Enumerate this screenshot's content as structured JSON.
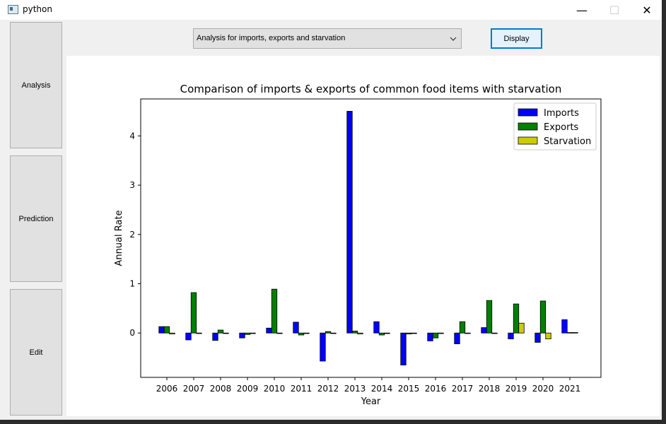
{
  "window": {
    "title": "python"
  },
  "window_controls": {
    "minimize": "—",
    "maximize": "☐",
    "close": "✕"
  },
  "sidebar": {
    "items": [
      {
        "label": "Analysis"
      },
      {
        "label": "Prediction"
      },
      {
        "label": "Edit"
      }
    ]
  },
  "toolbar": {
    "dropdown_value": "Analysis for imports, exports and starvation",
    "display_label": "Display"
  },
  "chart_data": {
    "type": "bar",
    "title": "Comparison of imports & exports of common food items with starvation",
    "xlabel": "Year",
    "ylabel": "Annual Rate",
    "categories": [
      "2006",
      "2007",
      "2008",
      "2009",
      "2010",
      "2011",
      "2012",
      "2013",
      "2014",
      "2015",
      "2016",
      "2017",
      "2018",
      "2019",
      "2020",
      "2021"
    ],
    "series": [
      {
        "name": "Imports",
        "color": "#0000ff",
        "values": [
          0.13,
          -0.14,
          -0.15,
          -0.1,
          0.1,
          0.22,
          -0.57,
          4.5,
          0.23,
          -0.65,
          -0.16,
          -0.22,
          0.11,
          -0.12,
          -0.19,
          0.27
        ]
      },
      {
        "name": "Exports",
        "color": "#008000",
        "values": [
          0.13,
          0.82,
          0.06,
          -0.03,
          0.89,
          -0.04,
          0.03,
          0.04,
          -0.04,
          -0.02,
          -0.1,
          0.23,
          0.66,
          0.59,
          0.65,
          0.01
        ]
      },
      {
        "name": "Starvation",
        "color": "#cccc00",
        "values": [
          -0.02,
          0.0,
          0.0,
          0.0,
          0.0,
          0.0,
          0.0,
          -0.02,
          -0.01,
          -0.01,
          0.0,
          0.0,
          0.0,
          0.2,
          -0.12,
          0.01
        ]
      }
    ],
    "y_ticks": [
      0,
      1,
      2,
      3,
      4
    ],
    "ylim": [
      -0.9,
      4.75
    ],
    "legend": "top-right"
  }
}
